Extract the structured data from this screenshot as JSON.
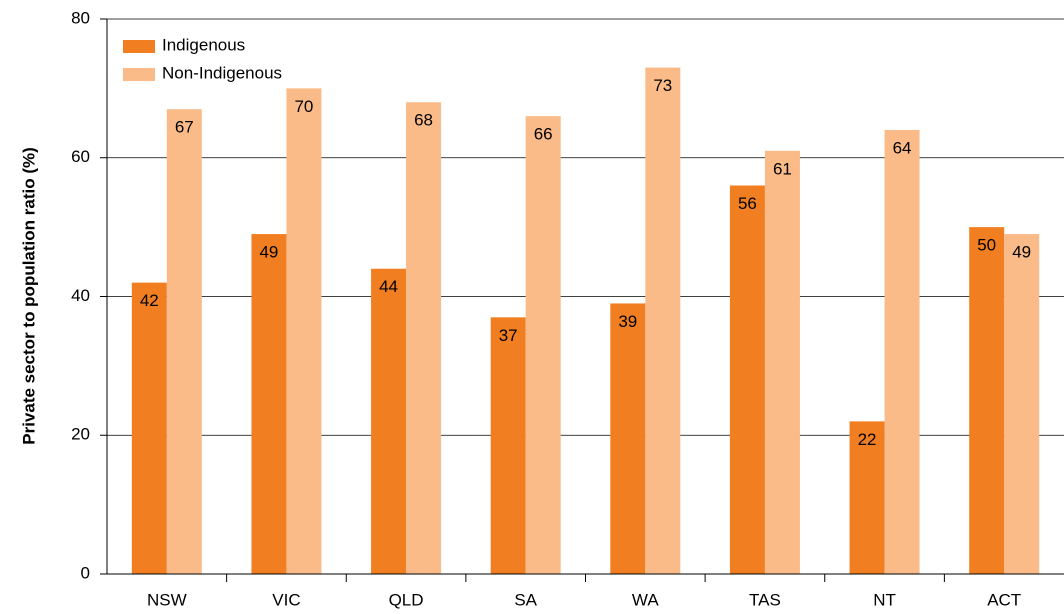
{
  "chart_data": {
    "type": "bar",
    "y_label": "Private sector to population ratio (%)",
    "categories": [
      "NSW",
      "VIC",
      "QLD",
      "SA",
      "WA",
      "TAS",
      "NT",
      "ACT"
    ],
    "series": [
      {
        "name": "Indigenous",
        "color": "#f17f22",
        "values": [
          42,
          49,
          44,
          37,
          39,
          56,
          22,
          50
        ]
      },
      {
        "name": "Non-Indigenous",
        "color": "#fbbb88",
        "values": [
          67,
          70,
          68,
          66,
          73,
          61,
          64,
          49
        ]
      }
    ],
    "ylim": [
      0,
      80
    ],
    "yticks": [
      0,
      20,
      40,
      60,
      80
    ],
    "grid": true,
    "legend": "top-left"
  }
}
